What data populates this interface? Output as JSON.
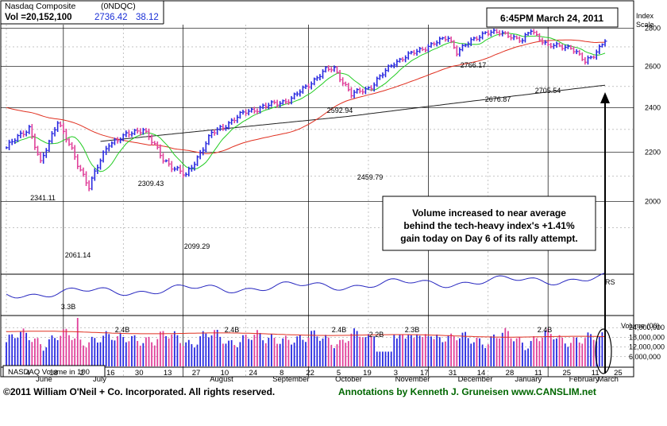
{
  "header": {
    "index_name": "Nasdaq Composite",
    "symbol": "(0NDQC)",
    "vol_text": "Vol =20,152,100",
    "close_value": "2736.42",
    "change_value": "38.12",
    "timestamp": "6:45PM March 24, 2011"
  },
  "scale_header": {
    "line1": "Index",
    "line2": "Scale"
  },
  "volume_header": "Volume (00)",
  "rs_label": "RS",
  "volume_box_label": "NASDAQ Volume in 100",
  "annotation": {
    "text": "Volume increased to near average behind the tech-heavy index's +1.41% gain today on Day 6 of its rally attempt.",
    "lines": [
      "Volume increased to near average",
      "behind the tech-heavy index's +1.41%",
      "gain today on Day 6 of its rally attempt."
    ]
  },
  "footer": {
    "copyright": "©2011 William O'Neil + Co. Incorporated. All rights reserved.",
    "annotations_credit": "Annotations by Kenneth J. Gruneisen  www.CANSLIM.net"
  },
  "colors": {
    "up_bar": "#2828e0",
    "down_bar": "#e0409a",
    "ma50": "#e03020",
    "ma200": "#222222",
    "ma10": "#22cc22",
    "rs": "#2828c0",
    "vol_avg": "#e03020",
    "grid": "#000000",
    "footer_green": "#006600"
  },
  "chart_data": {
    "type": "ohlc",
    "y_scale": "log",
    "ylim": [
      1750,
      2930
    ],
    "y_ticks": [
      "2800",
      "2600",
      "2400",
      "2200",
      "2000"
    ],
    "volume_ticks": [
      "24,000,000",
      "18,000,000",
      "12,000,000",
      "6,000,000"
    ],
    "volume_ylim": [
      0,
      30000000
    ],
    "x_day_labels": [
      "4",
      "18",
      "2",
      "16",
      "30",
      "13",
      "27",
      "10",
      "24",
      "8",
      "22",
      "5",
      "19",
      "3",
      "17",
      "31",
      "14",
      "28",
      "11",
      "25",
      "11",
      "25"
    ],
    "months": [
      "June",
      "July",
      "August",
      "September",
      "October",
      "November",
      "December",
      "January",
      "February",
      "March"
    ],
    "price_annotations": [
      "2341.11",
      "2061.14",
      "2309.43",
      "2099.29",
      "2592.94",
      "2459.79",
      "2766.17",
      "2676.87",
      "2705.54"
    ],
    "volume_annotations": [
      "3.3B",
      "2.4B",
      "2.4B",
      "2.4B",
      "2.2B",
      "2.3B",
      "2.4B"
    ],
    "anchors": [
      {
        "day": 0,
        "close": 2220
      },
      {
        "day": 8,
        "close": 2310
      },
      {
        "day": 12,
        "close": 2150
      },
      {
        "day": 18,
        "close": 2341
      },
      {
        "day": 25,
        "close": 2150
      },
      {
        "day": 29,
        "close": 2061
      },
      {
        "day": 36,
        "close": 2240
      },
      {
        "day": 48,
        "close": 2305
      },
      {
        "day": 55,
        "close": 2170
      },
      {
        "day": 63,
        "close": 2100
      },
      {
        "day": 72,
        "close": 2280
      },
      {
        "day": 84,
        "close": 2380
      },
      {
        "day": 100,
        "close": 2440
      },
      {
        "day": 112,
        "close": 2580
      },
      {
        "day": 115,
        "close": 2590
      },
      {
        "day": 121,
        "close": 2460
      },
      {
        "day": 128,
        "close": 2500
      },
      {
        "day": 136,
        "close": 2620
      },
      {
        "day": 148,
        "close": 2705
      },
      {
        "day": 155,
        "close": 2750
      },
      {
        "day": 158,
        "close": 2676
      },
      {
        "day": 168,
        "close": 2780
      },
      {
        "day": 176,
        "close": 2766
      },
      {
        "day": 181,
        "close": 2730
      },
      {
        "day": 184,
        "close": 2790
      },
      {
        "day": 190,
        "close": 2705
      },
      {
        "day": 198,
        "close": 2700
      },
      {
        "day": 203,
        "close": 2620
      },
      {
        "day": 206,
        "close": 2660
      },
      {
        "day": 210,
        "close": 2736
      }
    ]
  }
}
